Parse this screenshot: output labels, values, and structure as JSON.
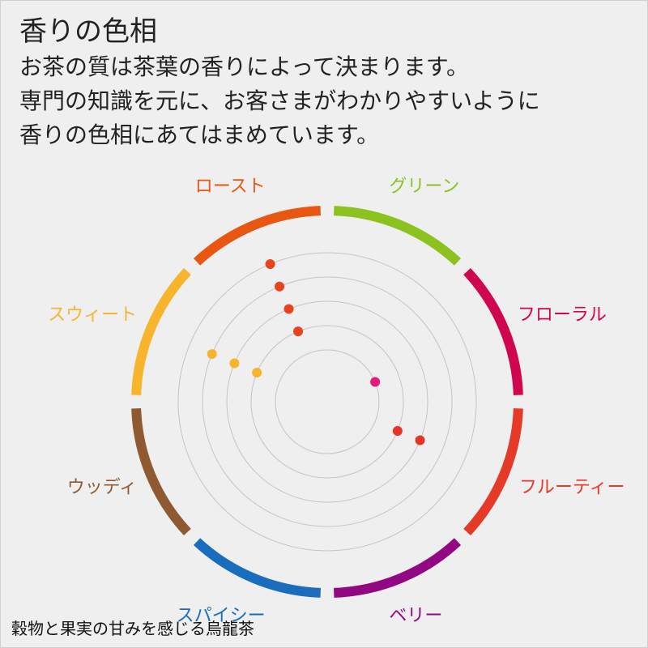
{
  "header": {
    "title": "香りの色相",
    "lines": [
      "お茶の質は茶葉の香りによって決まります。",
      "専門の知識を元に、お客さまがわかりやすいように",
      "香りの色相にあてはまめています。"
    ]
  },
  "wheel": {
    "segments": [
      {
        "label": "グリーン",
        "color": "#8cc21f"
      },
      {
        "label": "フローラル",
        "color": "#d0064e"
      },
      {
        "label": "フルーティー",
        "color": "#e53a27"
      },
      {
        "label": "ベリー",
        "color": "#920883"
      },
      {
        "label": "スパイシー",
        "color": "#1a6dbd"
      },
      {
        "label": "ウッディ",
        "color": "#8f5a31"
      },
      {
        "label": "スウィート",
        "color": "#f6b52d"
      },
      {
        "label": "ロースト",
        "color": "#e85612"
      }
    ],
    "rings": 5,
    "points": [
      {
        "segment": "ロースト",
        "level": 5,
        "color": "#e8431c"
      },
      {
        "segment": "ロースト",
        "level": 4,
        "color": "#e8431c"
      },
      {
        "segment": "ロースト",
        "level": 3,
        "color": "#e8431c"
      },
      {
        "segment": "ロースト",
        "level": 2,
        "color": "#e8431c"
      },
      {
        "segment": "スウィート",
        "level": 4,
        "color": "#f6b52d"
      },
      {
        "segment": "スウィート",
        "level": 3,
        "color": "#f6b52d"
      },
      {
        "segment": "スウィート",
        "level": 2,
        "color": "#f6b52d"
      },
      {
        "segment": "フローラル",
        "level": 1,
        "color": "#e5197a"
      },
      {
        "segment": "フルーティー",
        "level": 2,
        "color": "#e5342a"
      },
      {
        "segment": "フルーティー",
        "level": 3,
        "color": "#e5342a"
      }
    ]
  },
  "footer": {
    "caption": "穀物と果実の甘みを感じる烏龍茶"
  }
}
